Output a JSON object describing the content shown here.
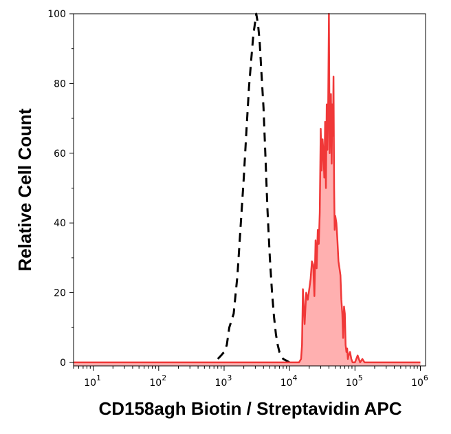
{
  "chart_data": {
    "type": "area",
    "xlabel": "CD158agh Biotin / Streptavidin APC",
    "ylabel": "Relative Cell Count",
    "x_scale": "log",
    "xlim": [
      5,
      1200000
    ],
    "ylim": [
      -1,
      100
    ],
    "x_ticks": [
      {
        "value": 10,
        "base": "10",
        "exp": "1"
      },
      {
        "value": 100,
        "base": "10",
        "exp": "2"
      },
      {
        "value": 1000,
        "base": "10",
        "exp": "3"
      },
      {
        "value": 10000,
        "base": "10",
        "exp": "4"
      },
      {
        "value": 100000,
        "base": "10",
        "exp": "5"
      },
      {
        "value": 1000000,
        "base": "10",
        "exp": "6"
      }
    ],
    "y_ticks": [
      {
        "value": 0,
        "label": "0"
      },
      {
        "value": 20,
        "label": "20"
      },
      {
        "value": 40,
        "label": "40"
      },
      {
        "value": 60,
        "label": "60"
      },
      {
        "value": 80,
        "label": "80"
      },
      {
        "value": 100,
        "label": "100"
      }
    ],
    "grid": false,
    "series": [
      {
        "style": "dashed-black-line",
        "color": "#000000",
        "x": [
          800,
          900,
          1000,
          1100,
          1200,
          1400,
          1600,
          1800,
          2000,
          2200,
          2400,
          2600,
          2800,
          3000,
          3100,
          3300,
          3500,
          3700,
          4000,
          4300,
          4600,
          5000,
          5400,
          5800,
          6200,
          6600,
          7000,
          7500,
          8000,
          9000,
          10000
        ],
        "y": [
          1,
          2,
          3,
          5,
          10,
          14,
          25,
          40,
          53,
          67,
          79,
          87,
          94,
          98,
          100,
          97,
          92,
          84,
          73,
          58,
          44,
          30,
          20,
          13,
          8,
          5,
          3,
          2,
          1,
          0.5,
          0
        ]
      },
      {
        "style": "filled-red-area",
        "color": "#f03838",
        "fill": "#ffb0b0",
        "x": [
          5,
          12000,
          14000,
          15000,
          15500,
          16000,
          17000,
          18000,
          19000,
          20000,
          21000,
          22000,
          23000,
          24000,
          25000,
          26000,
          27000,
          28000,
          29000,
          30000,
          31000,
          32000,
          33000,
          34000,
          35000,
          36000,
          37000,
          38000,
          39000,
          40000,
          41000,
          42000,
          43000,
          44000,
          45000,
          46000,
          47000,
          48000,
          49000,
          50000,
          52000,
          54000,
          56000,
          58000,
          60000,
          62000,
          64000,
          66000,
          68000,
          70000,
          72000,
          74000,
          76000,
          78000,
          80000,
          84000,
          88000,
          92000,
          100000,
          110000,
          120000,
          130000,
          140000,
          150000,
          170000,
          200000,
          1000000
        ],
        "y": [
          0,
          0,
          0,
          1,
          5,
          21,
          11,
          20,
          18,
          21,
          24,
          29,
          28,
          19,
          35,
          27,
          38,
          34,
          43,
          67,
          55,
          64,
          60,
          53,
          69,
          50,
          74,
          61,
          75,
          100,
          60,
          72,
          77,
          57,
          74,
          65,
          82,
          50,
          38,
          42,
          40,
          35,
          29,
          27,
          25,
          18,
          14,
          7,
          16,
          14,
          5,
          3,
          4,
          1,
          2,
          3,
          1,
          0,
          0,
          2,
          0,
          1,
          0,
          0,
          0,
          0,
          0
        ]
      }
    ]
  }
}
